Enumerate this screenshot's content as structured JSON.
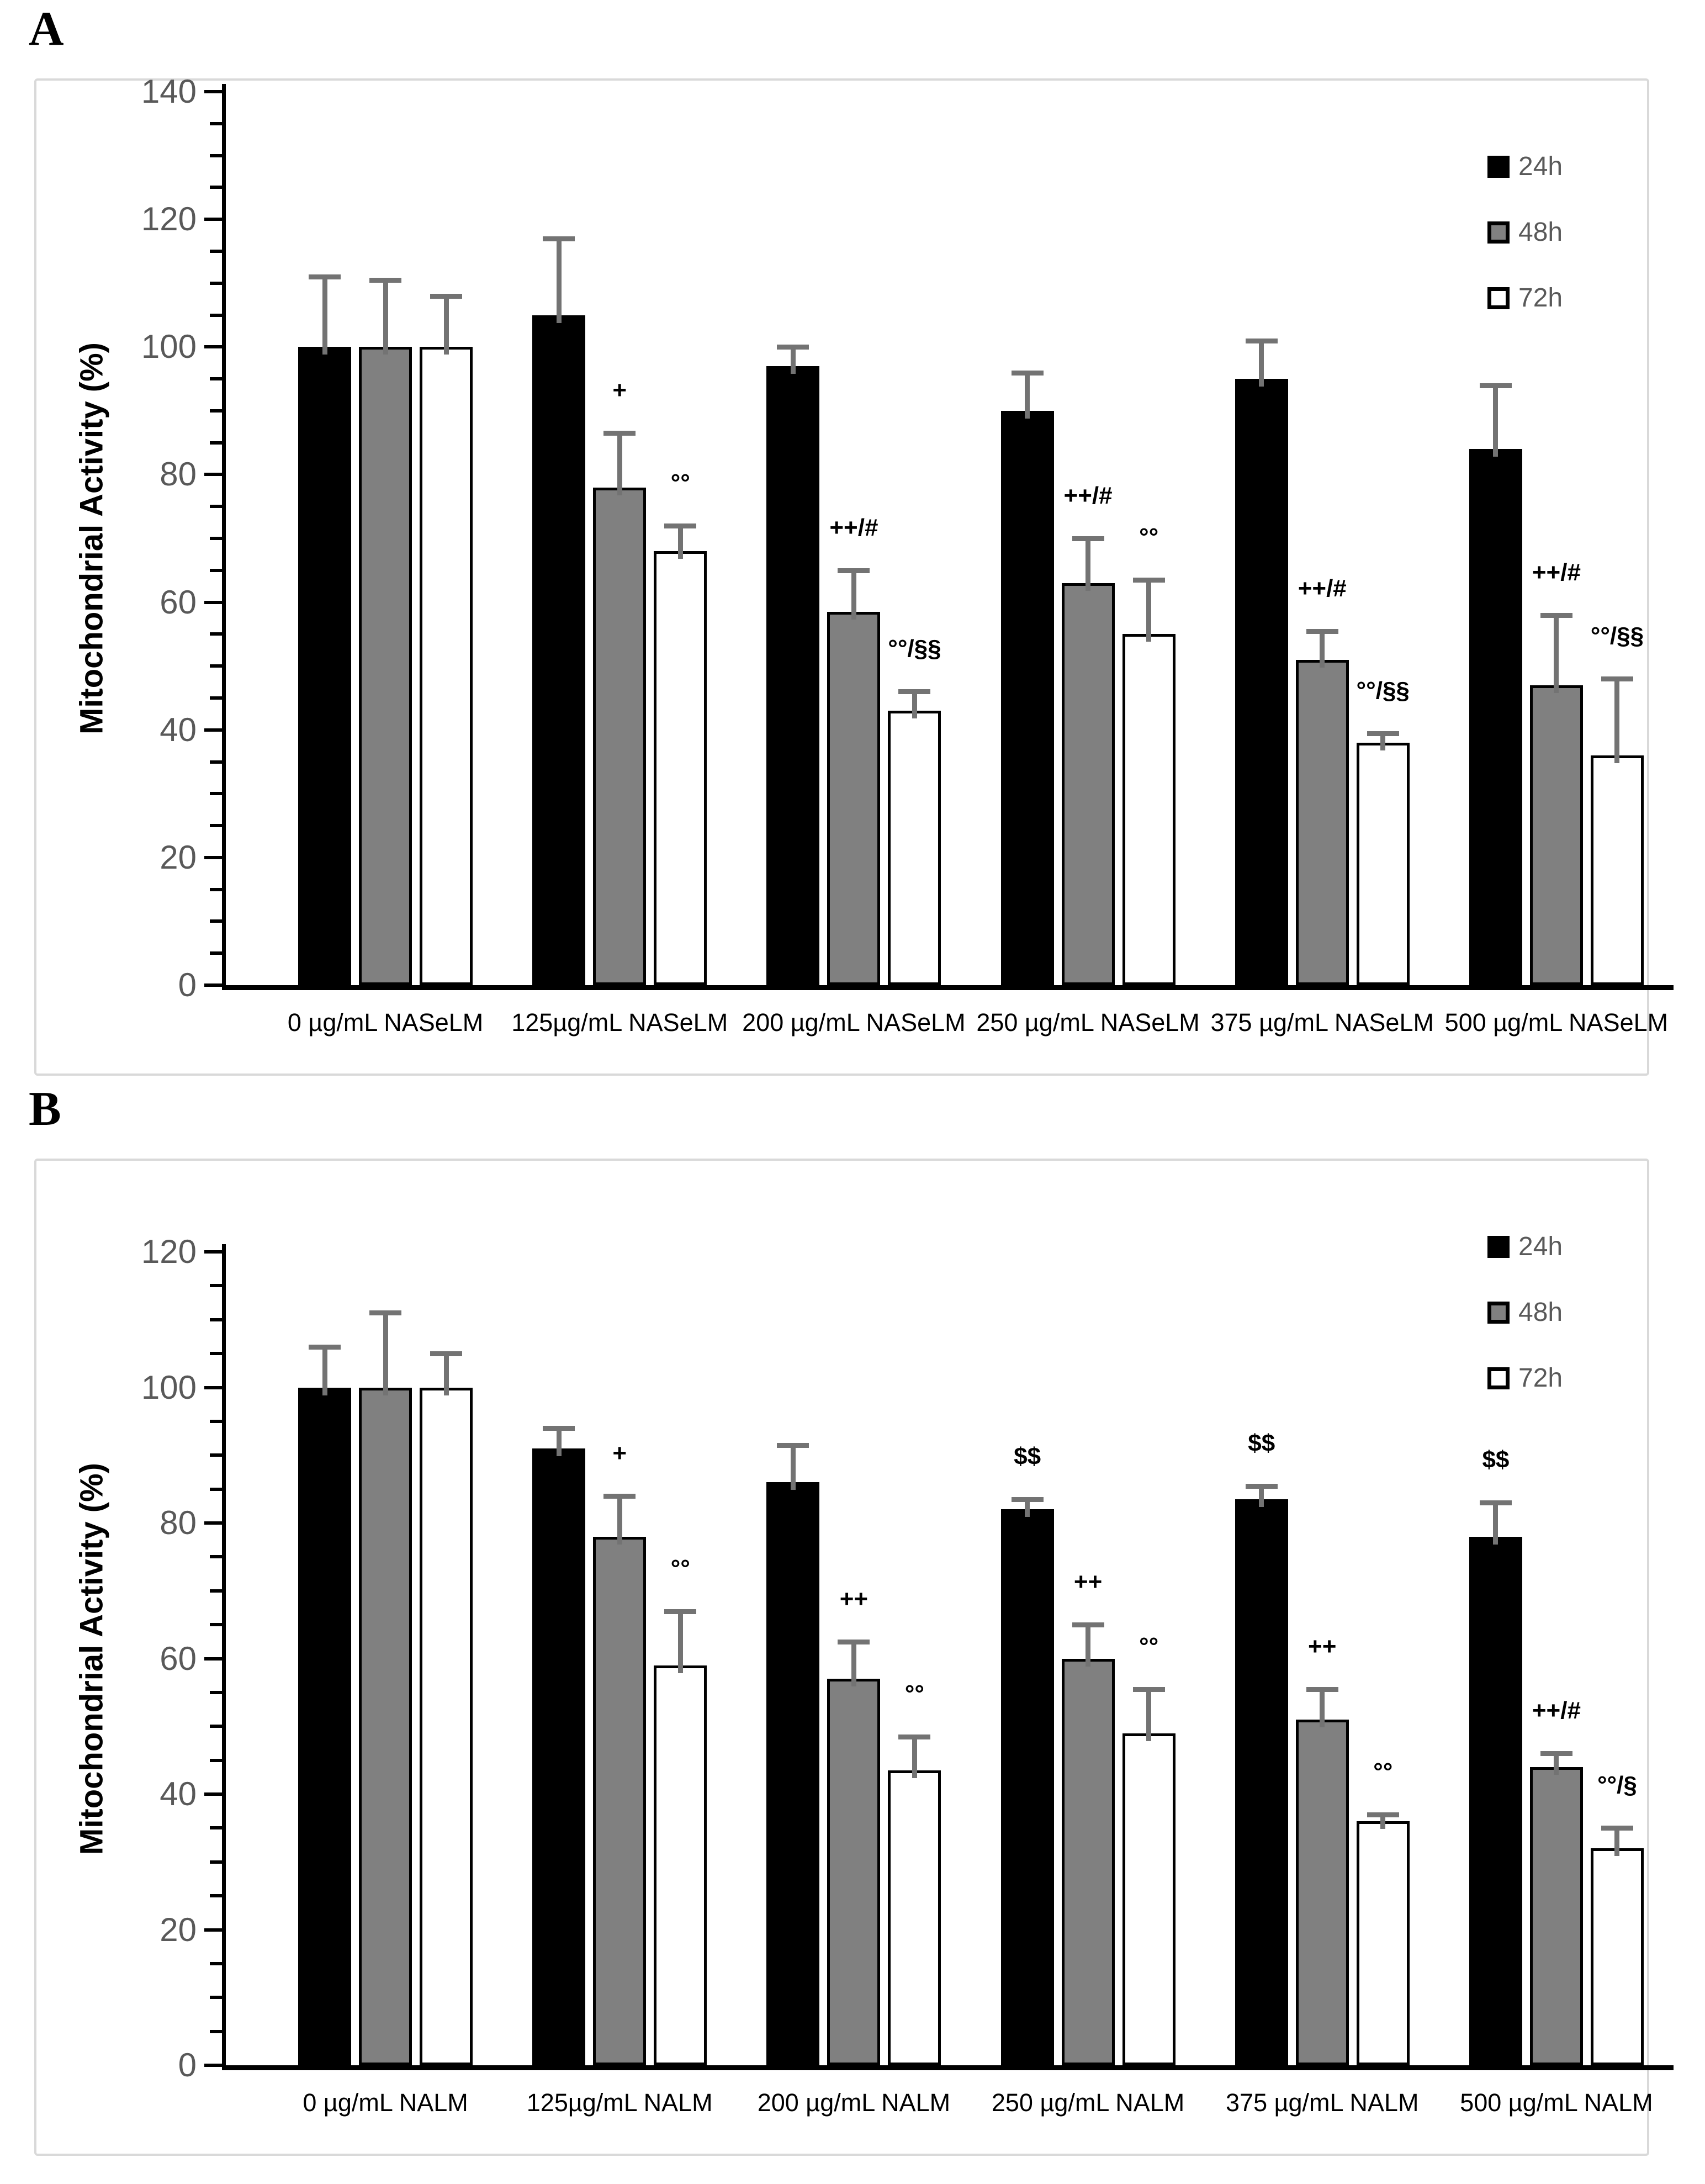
{
  "panels": [
    {
      "label": "A"
    },
    {
      "label": "B"
    }
  ],
  "chart_data": [
    {
      "type": "bar",
      "panel": "A",
      "title": "",
      "xlabel": "",
      "ylabel": "Mitochondrial Activity (%)",
      "ylim": [
        0,
        140
      ],
      "ytick_step": 20,
      "minor_tick_step": 5,
      "grid": false,
      "legend_position": "top-right",
      "error_bar_color": "#737373",
      "categories": [
        "0 µg/mL NASeLM",
        "125µg/mL NASeLM",
        "200 µg/mL NASeLM",
        "250 µg/mL NASeLM",
        "375 µg/mL NASeLM",
        "500 µg/mL NASeLM"
      ],
      "series": [
        {
          "name": "24h",
          "color": "#000000",
          "values": [
            100,
            105,
            97,
            90,
            95,
            84
          ],
          "errors": [
            11,
            12,
            3,
            6,
            6,
            10
          ],
          "annotations": [
            "",
            "",
            "",
            "",
            "",
            ""
          ]
        },
        {
          "name": "48h",
          "color": "#808080",
          "values": [
            100,
            78,
            58.5,
            63,
            51,
            47
          ],
          "errors": [
            10.5,
            8.5,
            6.5,
            7,
            4.5,
            11
          ],
          "annotations": [
            "",
            "+",
            "++/#",
            "++/#",
            "++/#",
            "++/#"
          ]
        },
        {
          "name": "72h",
          "color": "#ffffff",
          "values": [
            100,
            68,
            43,
            55,
            38,
            36
          ],
          "errors": [
            8,
            4,
            3,
            8.5,
            1.5,
            12
          ],
          "annotations": [
            "",
            "°°",
            "°°/§§",
            "°°",
            "°°/§§",
            "°°/§§"
          ]
        }
      ]
    },
    {
      "type": "bar",
      "panel": "B",
      "title": "",
      "xlabel": "",
      "ylabel": "Mitochondrial Activity (%)",
      "ylim": [
        0,
        120
      ],
      "ytick_step": 20,
      "minor_tick_step": 5,
      "grid": false,
      "legend_position": "top-right",
      "error_bar_color": "#737373",
      "categories": [
        "0 µg/mL NALM",
        "125µg/mL NALM",
        "200 µg/mL NALM",
        "250 µg/mL NALM",
        "375 µg/mL NALM",
        "500 µg/mL NALM"
      ],
      "series": [
        {
          "name": "24h",
          "color": "#000000",
          "values": [
            100,
            91,
            86,
            82,
            83.5,
            78
          ],
          "errors": [
            6,
            3,
            5.5,
            1.5,
            2,
            5
          ],
          "annotations": [
            "",
            "",
            "",
            "$$",
            "$$",
            "$$"
          ]
        },
        {
          "name": "48h",
          "color": "#808080",
          "values": [
            100,
            78,
            57,
            60,
            51,
            44
          ],
          "errors": [
            11,
            6,
            5.5,
            5,
            4.5,
            2
          ],
          "annotations": [
            "",
            "+",
            "++",
            "++",
            "++",
            "++/#"
          ]
        },
        {
          "name": "72h",
          "color": "#ffffff",
          "values": [
            100,
            59,
            43.5,
            49,
            36,
            32
          ],
          "errors": [
            5,
            8,
            5,
            6.5,
            1,
            3
          ],
          "annotations": [
            "",
            "°°",
            "°°",
            "°°",
            "°°",
            "°°/§"
          ]
        }
      ]
    }
  ]
}
